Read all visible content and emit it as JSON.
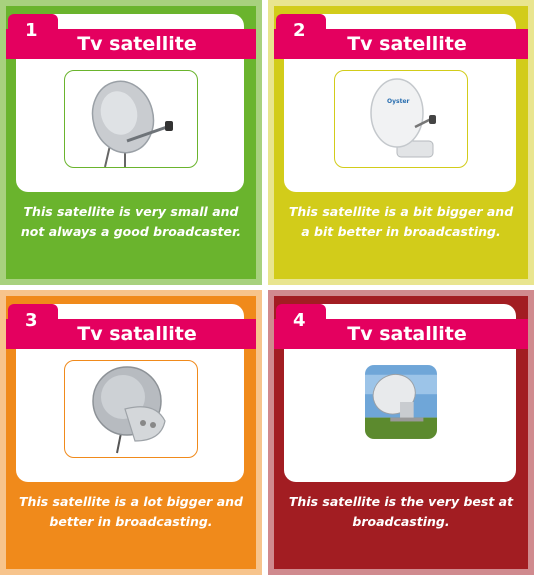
{
  "cards": [
    {
      "number": "1",
      "title": "Tv satellite",
      "caption": "This satellite is very small and not always a good broadcaster.",
      "image_icon": "small-dish-icon",
      "background": "#6ab42d"
    },
    {
      "number": "2",
      "title": "Tv satellite",
      "caption": "This satellite is a bit bigger and a bit better in broadcasting.",
      "image_icon": "dome-dish-icon",
      "background": "#d2cc1a"
    },
    {
      "number": "3",
      "title": "Tv satallite",
      "caption": "This satellite is a lot bigger and better in broadcasting.",
      "image_icon": "large-dish-icon",
      "background": "#f08a1b"
    },
    {
      "number": "4",
      "title": "Tv satallite",
      "caption": "This satellite is the very best at broadcasting.",
      "image_icon": "radio-telescope-icon",
      "background": "#a21d22"
    }
  ],
  "colors": {
    "ribbon": "#e4005f",
    "text_on_color": "#ffffff"
  }
}
